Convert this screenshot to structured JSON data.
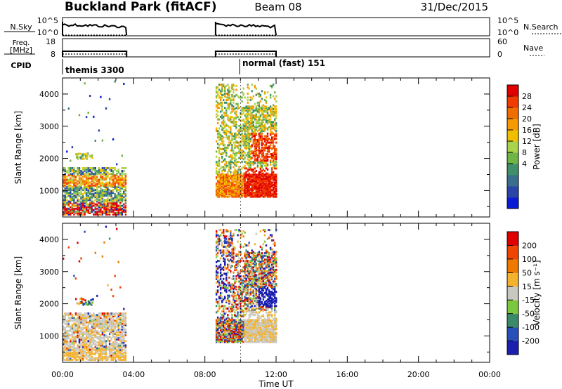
{
  "header": {
    "station": "Buckland Park (fitACF)",
    "beam": "Beam 08",
    "date": "31/Dec/2015"
  },
  "sky_panel": {
    "left_label": "N.Sky",
    "right_label": "N.Search",
    "left_ticks": [
      "10^5",
      "10^0"
    ],
    "right_ticks": [
      "10^5",
      "10^0"
    ]
  },
  "freq_panel": {
    "left_label_line1": "Freq.",
    "left_label_line2": "[MHz]",
    "right_label": "Nave",
    "left_ticks": [
      "18",
      "8"
    ],
    "right_ticks": [
      "60",
      "0"
    ]
  },
  "cpid": {
    "label": "CPID",
    "modes": [
      {
        "name": "themis 3300",
        "start_hour": 0.0
      },
      {
        "name": "normal (fast) 151",
        "start_hour": 10.0
      }
    ]
  },
  "chart_data": [
    {
      "type": "heatmap",
      "ylabel": "Slant Range [km]",
      "xlabel": "Time UT",
      "xlim_hours": [
        0,
        24
      ],
      "ylim_km": [
        180,
        4500
      ],
      "x_tick_labels": [
        "00:00",
        "04:00",
        "08:00",
        "12:00",
        "16:00",
        "20:00",
        "00:00"
      ],
      "y_ticks": [
        1000,
        2000,
        3000,
        4000
      ],
      "colorbar": {
        "label": "Power [dB]",
        "tick_labels": [
          "28",
          "24",
          "20",
          "16",
          "12",
          "8",
          "4"
        ],
        "colors": [
          "#0a1bd6",
          "#2a44a8",
          "#3a6e8c",
          "#3f8f6a",
          "#6fb545",
          "#a8d34a",
          "#f0c000",
          "#f59a00",
          "#f06e00",
          "#f03a00",
          "#e00000"
        ]
      },
      "data_intervals_hours": [
        [
          0.0,
          3.6
        ],
        [
          8.6,
          12.0
        ]
      ]
    },
    {
      "type": "heatmap",
      "ylabel": "Slant Range [km]",
      "xlabel": "Time UT",
      "xlim_hours": [
        0,
        24
      ],
      "ylim_km": [
        180,
        4500
      ],
      "x_tick_labels": [
        "00:00",
        "04:00",
        "08:00",
        "12:00",
        "16:00",
        "20:00",
        "00:00"
      ],
      "y_ticks": [
        1000,
        2000,
        3000,
        4000
      ],
      "colorbar": {
        "label": "Velocity [m s⁻¹]",
        "tick_labels": [
          "200",
          "100",
          "50",
          "15",
          "-15",
          "-50",
          "-100",
          "-200"
        ],
        "colors": [
          "#1a1fb0",
          "#2950b8",
          "#3a8a6a",
          "#7cc83c",
          "#c8c8c0",
          "#f5b22c",
          "#f07a00",
          "#f04400",
          "#e00000"
        ]
      },
      "data_intervals_hours": [
        [
          0.0,
          3.6
        ],
        [
          8.6,
          12.0
        ]
      ]
    }
  ],
  "time_axis": {
    "label": "Time UT"
  }
}
